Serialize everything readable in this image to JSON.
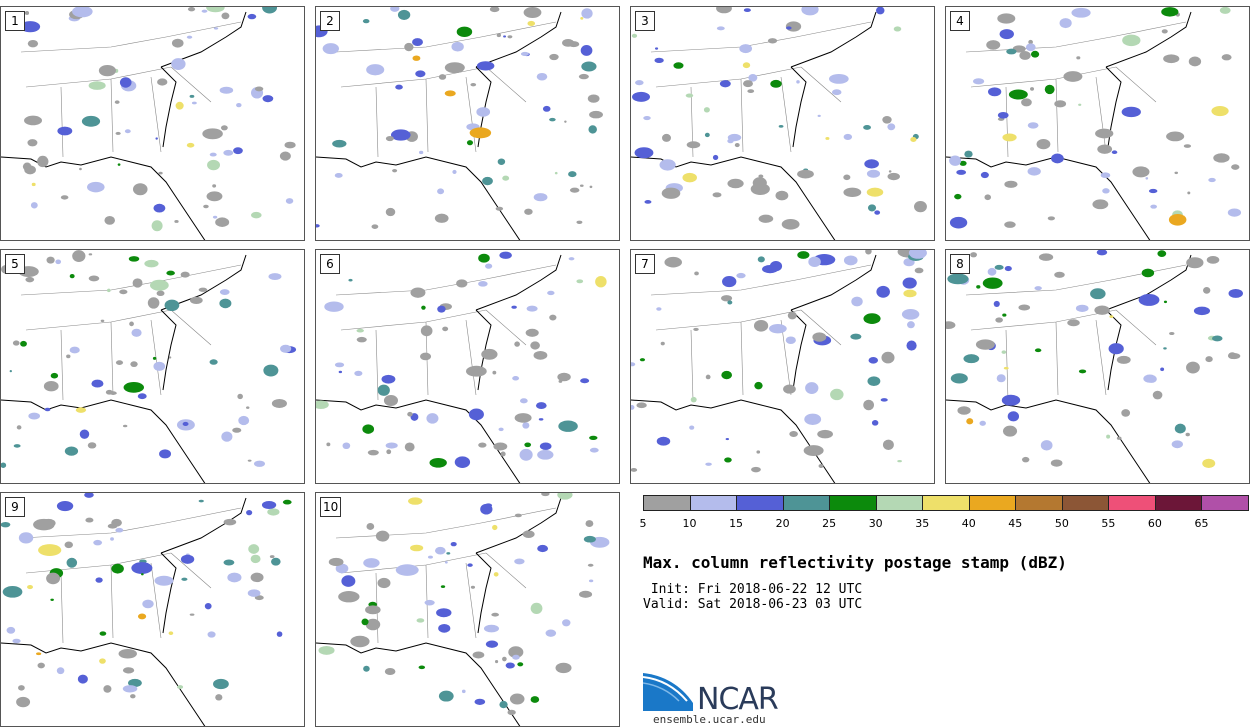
{
  "panels": [
    {
      "label": "1"
    },
    {
      "label": "2"
    },
    {
      "label": "3"
    },
    {
      "label": "4"
    },
    {
      "label": "5"
    },
    {
      "label": "6"
    },
    {
      "label": "7"
    },
    {
      "label": "8"
    },
    {
      "label": "9"
    },
    {
      "label": "10"
    }
  ],
  "colorbar": {
    "ticks": [
      "5",
      "10",
      "15",
      "20",
      "25",
      "30",
      "35",
      "40",
      "45",
      "50",
      "55",
      "60",
      "65"
    ],
    "colors": [
      "#a0a0a0",
      "#b4bcec",
      "#5560d6",
      "#4e9496",
      "#0c8a0c",
      "#b4d8b4",
      "#eee06a",
      "#eaa820",
      "#b47830",
      "#8c5636",
      "#ee5078",
      "#6c1638",
      "#b050a8"
    ]
  },
  "title": "Max. column reflectivity postage stamp (dBZ)",
  "init": " Init: Fri 2018-06-22 12 UTC",
  "valid": "Valid: Sat 2018-06-23 03 UTC",
  "logo": {
    "text": "NCAR",
    "url": "ensemble.ucar.edu"
  }
}
